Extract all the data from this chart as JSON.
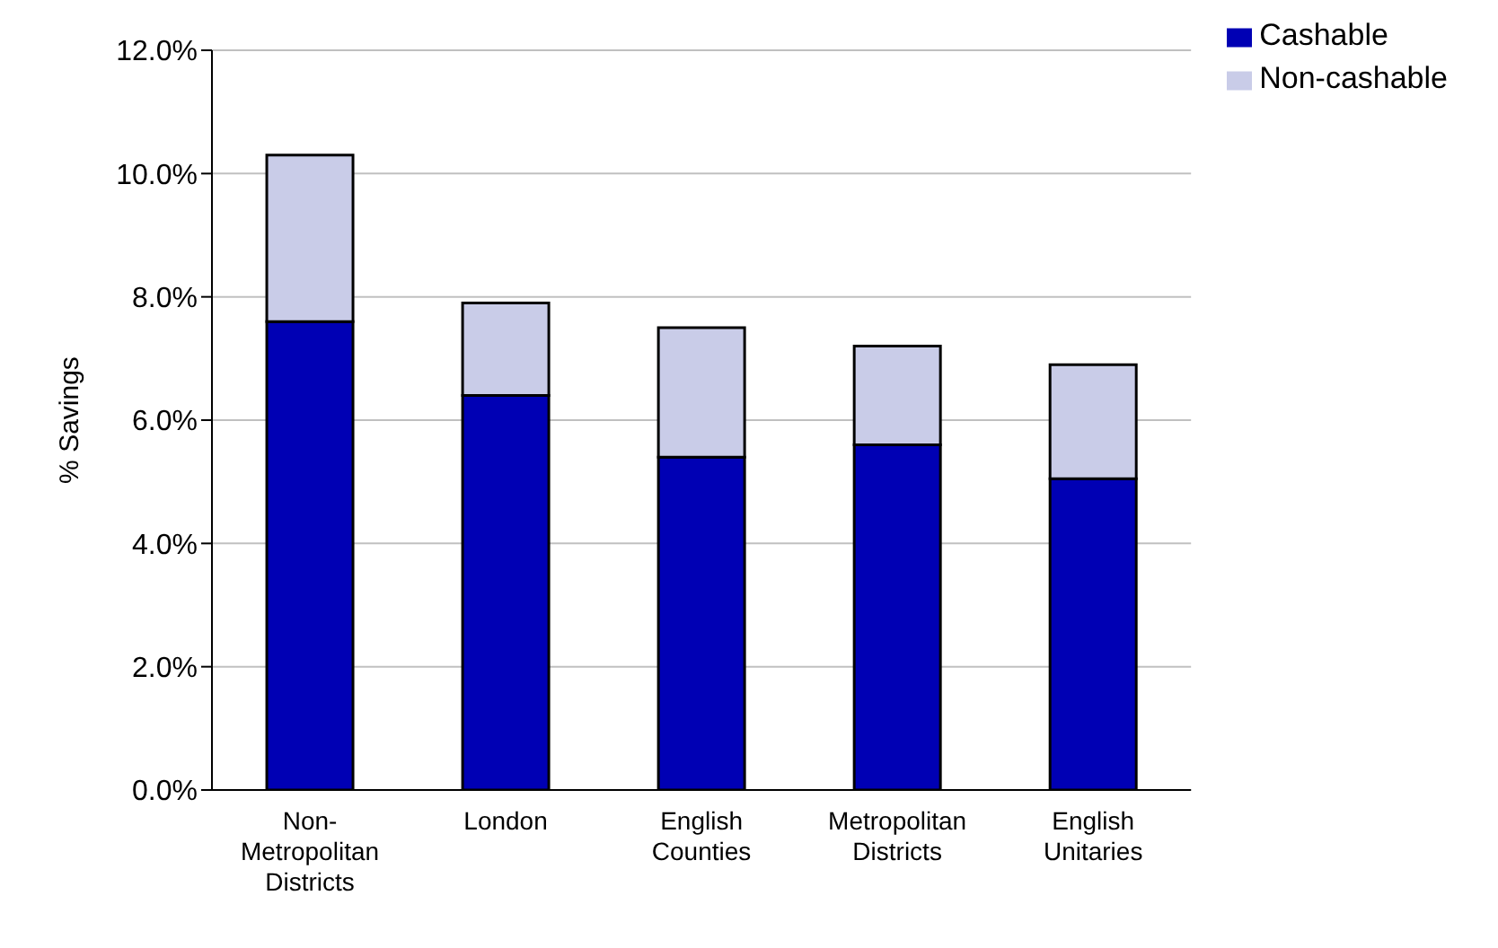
{
  "chart_data": {
    "type": "bar",
    "stacked": true,
    "ylabel": "% Savings",
    "categories": [
      "Non-Metropolitan Districts",
      "London",
      "English Counties",
      "Metropolitan Districts",
      "English Unitaries"
    ],
    "series": [
      {
        "name": "Cashable",
        "color": "#0000b4",
        "values": [
          7.6,
          6.4,
          5.4,
          5.6,
          5.05
        ]
      },
      {
        "name": "Non-cashable",
        "color": "#c9cce8",
        "values": [
          2.7,
          1.5,
          2.1,
          1.6,
          1.85
        ]
      }
    ],
    "ylim": [
      0,
      12
    ],
    "yticks": [
      {
        "value": 0,
        "label": "0.0%"
      },
      {
        "value": 2,
        "label": "2.0%"
      },
      {
        "value": 4,
        "label": "4.0%"
      },
      {
        "value": 6,
        "label": "6.0%"
      },
      {
        "value": 8,
        "label": "8.0%"
      },
      {
        "value": 10,
        "label": "10.0%"
      },
      {
        "value": 12,
        "label": "12.0%"
      }
    ],
    "grid": "y",
    "legend": "top right"
  }
}
